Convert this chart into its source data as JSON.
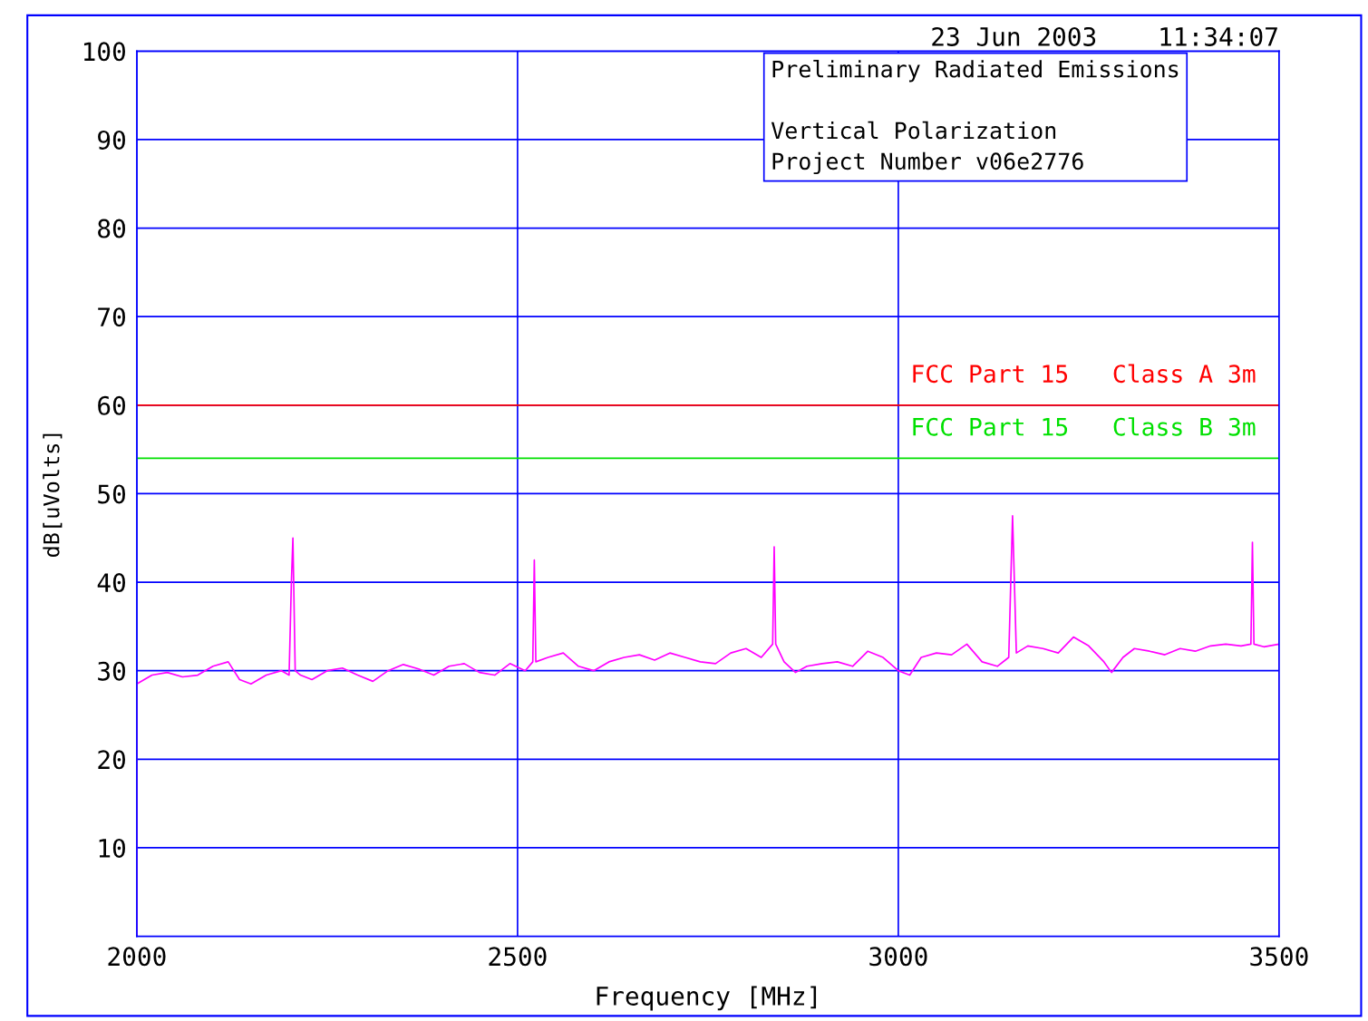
{
  "chart_data": {
    "type": "line",
    "title": "23 Jun 2003    11:34:07",
    "xlabel": "Frequency [MHz]",
    "ylabel": "dB[uVolts]",
    "annotations": [
      "Preliminary Radiated Emissions",
      "Vertical Polarization\nProject Number v06e2776"
    ],
    "x": [
      2000,
      2000,
      2020,
      2040,
      2060,
      2080,
      2100,
      2120,
      2135,
      2150,
      2170,
      2190,
      2200,
      2203,
      2205,
      2208,
      2215,
      2230,
      2250,
      2270,
      2290,
      2310,
      2330,
      2350,
      2370,
      2390,
      2410,
      2430,
      2450,
      2470,
      2490,
      2510,
      2520,
      2522,
      2524,
      2540,
      2560,
      2580,
      2600,
      2620,
      2640,
      2660,
      2680,
      2700,
      2720,
      2740,
      2760,
      2780,
      2800,
      2820,
      2835,
      2837,
      2839,
      2850,
      2865,
      2880,
      2900,
      2920,
      2940,
      2960,
      2980,
      3000,
      3015,
      3030,
      3050,
      3070,
      3090,
      3110,
      3130,
      3145,
      3150,
      3155,
      3170,
      3190,
      3210,
      3230,
      3250,
      3270,
      3280,
      3295,
      3310,
      3330,
      3350,
      3370,
      3390,
      3410,
      3430,
      3450,
      3463,
      3465,
      3467,
      3480,
      3500,
      3500
    ],
    "series": [
      {
        "color": "#ff00ff",
        "values": [
          0,
          28.5,
          29.5,
          29.8,
          29.3,
          29.5,
          30.5,
          31,
          29,
          28.5,
          29.5,
          30,
          29.5,
          40,
          45,
          30,
          29.5,
          29,
          30,
          30.3,
          29.5,
          28.8,
          30,
          30.7,
          30.2,
          29.5,
          30.5,
          30.8,
          29.8,
          29.5,
          30.8,
          30,
          31,
          42.5,
          31,
          31.5,
          32,
          30.5,
          30,
          31,
          31.5,
          31.8,
          31.2,
          32,
          31.5,
          31,
          30.8,
          32,
          32.5,
          31.5,
          33,
          44,
          33,
          31,
          29.8,
          30.5,
          30.8,
          31,
          30.5,
          32.2,
          31.5,
          30,
          29.5,
          31.5,
          32,
          31.8,
          33,
          31,
          30.5,
          31.5,
          47.5,
          32,
          32.8,
          32.5,
          32,
          33.8,
          32.8,
          31,
          29.8,
          31.5,
          32.5,
          32.2,
          31.8,
          32.5,
          32.2,
          32.8,
          33,
          32.8,
          33,
          44.5,
          33,
          32.7,
          33,
          0
        ]
      }
    ],
    "xlim": [
      2000,
      3500
    ],
    "xticks": [
      2000,
      2500,
      3000,
      3500
    ],
    "ylim": [
      0,
      100
    ],
    "yticks": [
      10,
      20,
      30,
      40,
      50,
      60,
      70,
      80,
      90,
      100
    ],
    "grid": true,
    "ref_lines": [
      {
        "axis": "y",
        "value": 60,
        "label": "FCC Part 15   Class A 3m",
        "color": "#ff0000"
      },
      {
        "axis": "y",
        "value": 54,
        "label": "FCC Part 15   Class B 3m",
        "color": "#00e000"
      }
    ]
  }
}
